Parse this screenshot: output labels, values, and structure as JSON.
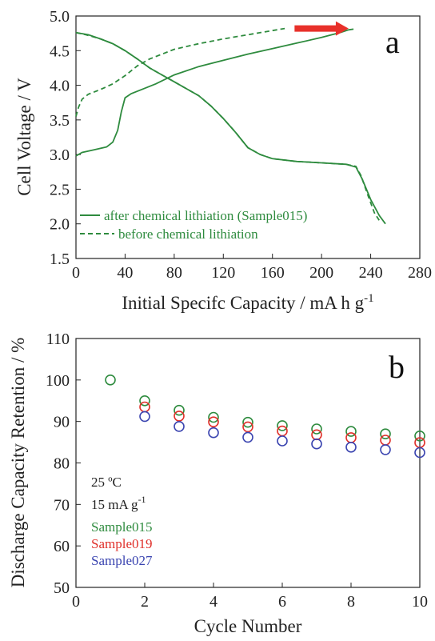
{
  "colors": {
    "curve": "#2e8b3e",
    "arrow": "#e8302a",
    "s015": "#2e8b3e",
    "s019": "#e0302a",
    "s027": "#3a44b0"
  },
  "chart_data": [
    {
      "panel_label": "a",
      "type": "line",
      "xlabel": "Initial Specifc Capacity / mA h g",
      "xlabel_sup": "-1",
      "ylabel": "Cell Voltage / V",
      "xlim": [
        0,
        280
      ],
      "ylim": [
        1.5,
        5.0
      ],
      "xticks": [
        "0",
        "40",
        "80",
        "120",
        "160",
        "200",
        "240",
        "280"
      ],
      "yticks": [
        "1.5",
        "2.0",
        "2.5",
        "3.0",
        "3.5",
        "4.0",
        "4.5",
        "5.0"
      ],
      "legend_position": "bottom-left",
      "arrow": {
        "from": [
          178,
          4.82
        ],
        "to": [
          222,
          4.82
        ]
      },
      "series": [
        {
          "name": "after chemical lithiation (Sample015)",
          "style": "solid",
          "segments": [
            [
              [
                0,
                2.98
              ],
              [
                5,
                3.03
              ],
              [
                15,
                3.07
              ],
              [
                25,
                3.11
              ],
              [
                30,
                3.18
              ],
              [
                34,
                3.35
              ],
              [
                37,
                3.62
              ],
              [
                40,
                3.82
              ],
              [
                45,
                3.88
              ],
              [
                55,
                3.95
              ],
              [
                65,
                4.02
              ],
              [
                80,
                4.15
              ],
              [
                100,
                4.27
              ],
              [
                120,
                4.36
              ],
              [
                140,
                4.45
              ],
              [
                160,
                4.53
              ],
              [
                180,
                4.61
              ],
              [
                200,
                4.69
              ],
              [
                215,
                4.76
              ],
              [
                222,
                4.8
              ],
              [
                226,
                4.81
              ]
            ],
            [
              [
                0,
                4.76
              ],
              [
                10,
                4.73
              ],
              [
                20,
                4.67
              ],
              [
                30,
                4.6
              ],
              [
                40,
                4.5
              ],
              [
                50,
                4.38
              ],
              [
                60,
                4.25
              ],
              [
                70,
                4.15
              ],
              [
                80,
                4.05
              ],
              [
                90,
                3.95
              ],
              [
                100,
                3.85
              ],
              [
                110,
                3.7
              ],
              [
                120,
                3.52
              ],
              [
                130,
                3.32
              ],
              [
                140,
                3.1
              ],
              [
                150,
                3.0
              ],
              [
                160,
                2.94
              ],
              [
                180,
                2.9
              ],
              [
                200,
                2.88
              ],
              [
                220,
                2.86
              ],
              [
                228,
                2.82
              ],
              [
                233,
                2.65
              ],
              [
                240,
                2.35
              ],
              [
                247,
                2.12
              ],
              [
                252,
                2.0
              ]
            ]
          ]
        },
        {
          "name": "before chemical lithiation",
          "style": "dashed",
          "segments": [
            [
              [
                0,
                3.55
              ],
              [
                2,
                3.68
              ],
              [
                5,
                3.8
              ],
              [
                10,
                3.87
              ],
              [
                20,
                3.94
              ],
              [
                30,
                4.02
              ],
              [
                40,
                4.14
              ],
              [
                50,
                4.28
              ],
              [
                60,
                4.38
              ],
              [
                80,
                4.52
              ],
              [
                100,
                4.6
              ],
              [
                120,
                4.67
              ],
              [
                140,
                4.73
              ],
              [
                160,
                4.79
              ],
              [
                170,
                4.82
              ]
            ],
            [
              [
                0,
                4.76
              ],
              [
                8,
                4.73
              ],
              [
                20,
                4.67
              ],
              [
                30,
                4.6
              ],
              [
                40,
                4.5
              ],
              [
                50,
                4.38
              ],
              [
                60,
                4.25
              ],
              [
                70,
                4.15
              ],
              [
                80,
                4.05
              ],
              [
                90,
                3.95
              ],
              [
                100,
                3.85
              ],
              [
                110,
                3.7
              ],
              [
                120,
                3.52
              ],
              [
                130,
                3.32
              ],
              [
                140,
                3.1
              ],
              [
                150,
                3.0
              ],
              [
                160,
                2.94
              ],
              [
                180,
                2.9
              ],
              [
                200,
                2.88
              ],
              [
                220,
                2.86
              ],
              [
                228,
                2.83
              ],
              [
                232,
                2.7
              ],
              [
                238,
                2.4
              ],
              [
                243,
                2.16
              ],
              [
                247,
                2.05
              ]
            ]
          ]
        }
      ]
    },
    {
      "panel_label": "b",
      "type": "scatter",
      "xlabel": "Cycle Number",
      "ylabel": "Discharge Capacity Retention / %",
      "xlim": [
        0,
        10
      ],
      "ylim": [
        50,
        110
      ],
      "xticks": [
        "0",
        "2",
        "4",
        "6",
        "8",
        "10"
      ],
      "yticks": [
        "50",
        "60",
        "70",
        "80",
        "90",
        "100",
        "110"
      ],
      "legend_position": "bottom-left",
      "conditions": [
        "25 ºC",
        "15 mA g"
      ],
      "conditions_sup": "-1",
      "series": [
        {
          "name": "Sample015",
          "color_key": "s015",
          "x": [
            1,
            2,
            3,
            4,
            5,
            6,
            7,
            8,
            9,
            10
          ],
          "y": [
            100,
            95.0,
            92.7,
            91.0,
            89.8,
            89.0,
            88.2,
            87.6,
            87.0,
            86.5
          ]
        },
        {
          "name": "Sample019",
          "color_key": "s019",
          "x": [
            2,
            3,
            4,
            5,
            6,
            7,
            8,
            9,
            10
          ],
          "y": [
            93.5,
            91.3,
            89.9,
            88.7,
            87.7,
            86.8,
            86.1,
            85.5,
            84.9
          ]
        },
        {
          "name": "Sample027",
          "color_key": "s027",
          "x": [
            2,
            3,
            4,
            5,
            6,
            7,
            8,
            9,
            10
          ],
          "y": [
            91.2,
            88.8,
            87.3,
            86.2,
            85.3,
            84.6,
            83.8,
            83.2,
            82.5
          ]
        }
      ]
    }
  ]
}
